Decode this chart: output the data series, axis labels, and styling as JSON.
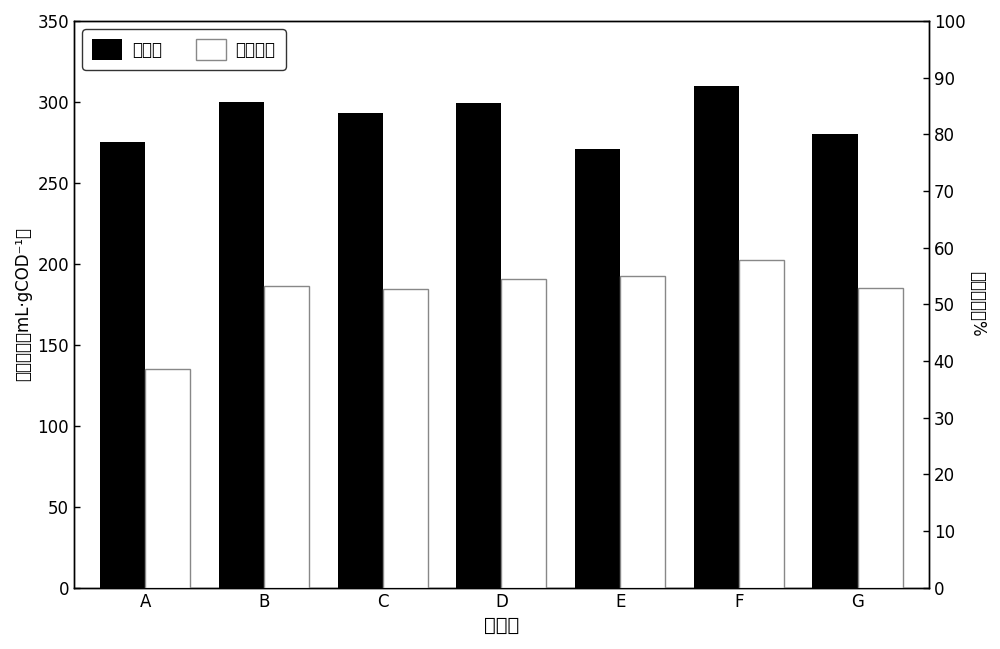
{
  "categories": [
    "A",
    "B",
    "C",
    "D",
    "E",
    "F",
    "G"
  ],
  "black_values": [
    275,
    300,
    293,
    299,
    271,
    310,
    280
  ],
  "white_values": [
    38.5,
    53.3,
    52.7,
    54.5,
    55.0,
    57.8,
    52.8
  ],
  "left_ylim": [
    0,
    350
  ],
  "right_ylim": [
    0,
    100
  ],
  "left_yticks": [
    0,
    50,
    100,
    150,
    200,
    250,
    300,
    350
  ],
  "right_yticks": [
    0,
    10,
    20,
    30,
    40,
    50,
    60,
    70,
    80,
    90,
    100
  ],
  "xlabel": "实验组",
  "ylabel_left": "产气率／（mL·gCOD⁻¹）",
  "ylabel_right": "甲烷含量／%",
  "legend_label_black": "产气率",
  "legend_label_white": "甲烷含量",
  "black_bar_color": "#000000",
  "white_bar_facecolor": "#ffffff",
  "white_bar_edgecolor": "#888888",
  "bar_width": 0.38,
  "fig_width": 10.0,
  "fig_height": 6.49,
  "dpi": 100,
  "background_color": "#ffffff"
}
